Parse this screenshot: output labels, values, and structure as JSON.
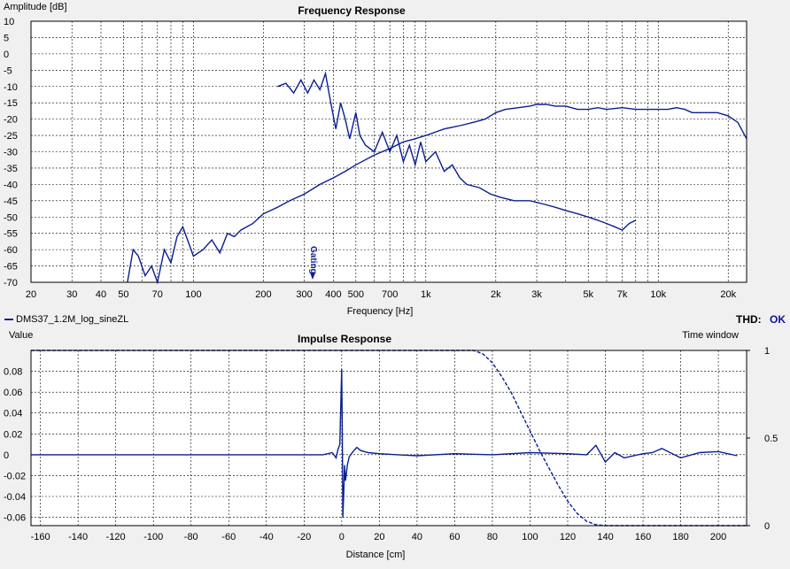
{
  "chart_data": [
    {
      "type": "line",
      "title": "Frequency Response",
      "xlabel": "Frequency [Hz]",
      "ylabel": "Amplitude [dB]",
      "x_scale": "log",
      "xlim": [
        20,
        24000
      ],
      "ylim": [
        -70,
        10
      ],
      "x_ticks": [
        20,
        30,
        40,
        50,
        70,
        100,
        200,
        300,
        400,
        500,
        700,
        1000,
        2000,
        3000,
        5000,
        7000,
        10000,
        20000
      ],
      "x_tick_labels": [
        "20",
        "30",
        "40",
        "50",
        "70",
        "100",
        "200",
        "300",
        "400",
        "500",
        "700",
        "1k",
        "2k",
        "3k",
        "5k",
        "7k",
        "10k",
        "20k"
      ],
      "y_ticks": [
        10,
        5,
        0,
        -5,
        -10,
        -15,
        -20,
        -25,
        -30,
        -35,
        -40,
        -45,
        -50,
        -55,
        -60,
        -65,
        -70
      ],
      "grid": true,
      "annotation": "Gating",
      "annotation_x": 330,
      "series": [
        {
          "name": "DMS37_1.2M_log_sineZL",
          "x": [
            52,
            55,
            58,
            62,
            66,
            70,
            75,
            80,
            85,
            90,
            100,
            110,
            120,
            130,
            140,
            150,
            160,
            180,
            200,
            230,
            260,
            300,
            350,
            400,
            450,
            500,
            600,
            700,
            800,
            900,
            1000,
            1200,
            1400,
            1600,
            1800,
            2000,
            2200,
            2500,
            2800,
            3000,
            3300,
            3600,
            4000,
            4500,
            5000,
            5500,
            6000,
            7000,
            8000,
            9000,
            10000,
            11000,
            12000,
            13000,
            14000,
            16000,
            18000,
            20000,
            22000,
            24000
          ],
          "y": [
            -70,
            -60,
            -62,
            -68,
            -65,
            -70,
            -60,
            -64,
            -56,
            -53,
            -62,
            -60,
            -57,
            -61,
            -55,
            -56,
            -54,
            -52,
            -49,
            -47,
            -45,
            -43,
            -40,
            -38,
            -36,
            -34,
            -31,
            -29,
            -27,
            -26,
            -25,
            -23,
            -22,
            -21,
            -20,
            -18,
            -17,
            -16.5,
            -16,
            -15.5,
            -15.5,
            -16,
            -16,
            -17,
            -17,
            -16.5,
            -17,
            -16.5,
            -17,
            -17,
            -17,
            -17,
            -16.5,
            -17,
            -18,
            -18,
            -18,
            -19,
            -21,
            -26
          ]
        },
        {
          "name": "",
          "x": [
            230,
            250,
            270,
            290,
            310,
            330,
            350,
            370,
            390,
            410,
            430,
            450,
            470,
            500,
            520,
            550,
            600,
            650,
            700,
            750,
            800,
            850,
            900,
            950,
            1000,
            1100,
            1200,
            1300,
            1400,
            1500,
            1700,
            1900,
            2100,
            2400,
            2800,
            3200,
            3600,
            4000,
            4500,
            5000,
            5500,
            6000,
            6500,
            7000,
            7500,
            8000
          ],
          "y": [
            -10,
            -9,
            -12,
            -8,
            -12,
            -8,
            -11,
            -6,
            -15,
            -23,
            -15,
            -20,
            -26,
            -18,
            -25,
            -28,
            -30,
            -24,
            -30,
            -25,
            -33,
            -28,
            -34,
            -27,
            -33,
            -30,
            -36,
            -34,
            -38,
            -40,
            -41,
            -43,
            -44,
            -45,
            -45,
            -46,
            -47,
            -48,
            -49,
            -50,
            -51,
            -52,
            -53,
            -54,
            -52,
            -51
          ]
        }
      ]
    },
    {
      "type": "line",
      "title": "Impulse Response",
      "xlabel": "Distance [cm]",
      "ylabel": "Value",
      "y2label": "Time window",
      "xlim": [
        -165,
        215
      ],
      "ylim": [
        -0.068,
        0.1
      ],
      "y2lim": [
        0,
        1
      ],
      "x_ticks": [
        -160,
        -140,
        -120,
        -100,
        -80,
        -60,
        -40,
        -20,
        0,
        20,
        40,
        60,
        80,
        100,
        120,
        140,
        160,
        180,
        200
      ],
      "x_tick_labels": [
        "-160",
        "-140",
        "-120",
        "-100",
        "-80",
        "-60",
        "-40",
        "-20",
        "0",
        "20",
        "40",
        "60",
        "80",
        "100",
        "120",
        "140",
        "160",
        "180",
        "200"
      ],
      "y_ticks": [
        0.08,
        0.06,
        0.04,
        0.02,
        0,
        -0.02,
        -0.04,
        -0.06
      ],
      "y_tick_labels": [
        "0.08",
        "0.06",
        "0.04",
        "0.02",
        "0",
        "-0.02",
        "-0.04",
        "-0.06"
      ],
      "y2_ticks": [
        1,
        0.5,
        0
      ],
      "y2_tick_labels": [
        "1",
        "0.5",
        "0"
      ],
      "grid": true,
      "series": [
        {
          "name": "impulse",
          "x": [
            -165,
            -10,
            -5,
            -3,
            -2,
            -1,
            0,
            0.3,
            0.6,
            1,
            1.5,
            2,
            3,
            4,
            6,
            8,
            10,
            14,
            20,
            30,
            40,
            60,
            80,
            100,
            120,
            130,
            135,
            140,
            145,
            150,
            160,
            165,
            170,
            180,
            190,
            200,
            210
          ],
          "y": [
            0,
            0,
            0.002,
            -0.003,
            0.005,
            0.01,
            0.082,
            0.02,
            -0.06,
            -0.04,
            -0.01,
            -0.025,
            -0.01,
            -0.002,
            0.003,
            0.007,
            0.004,
            0.002,
            0.001,
            0,
            -0.001,
            0.001,
            0,
            0.002,
            0.001,
            0,
            0.009,
            -0.007,
            0.002,
            -0.003,
            0.001,
            0.002,
            0.006,
            -0.003,
            0.002,
            0.003,
            -0.001
          ]
        },
        {
          "name": "time-window",
          "axis": "right",
          "x": [
            -165,
            70,
            75,
            80,
            85,
            90,
            95,
            100,
            105,
            110,
            115,
            120,
            125,
            130,
            135,
            140,
            215
          ],
          "y": [
            1,
            1,
            0.98,
            0.93,
            0.85,
            0.76,
            0.65,
            0.54,
            0.43,
            0.33,
            0.23,
            0.14,
            0.07,
            0.025,
            0.005,
            0,
            0
          ]
        }
      ]
    }
  ],
  "legend": {
    "series_label": "DMS37_1.2M_log_sineZL",
    "thd_label": "THD:",
    "thd_value": "OK"
  },
  "colors": {
    "curve": "#0a1f8f",
    "grid": "#000000",
    "background": "#ffffff",
    "window_bg": "#f0f0f0",
    "ok": "#1010a0"
  }
}
